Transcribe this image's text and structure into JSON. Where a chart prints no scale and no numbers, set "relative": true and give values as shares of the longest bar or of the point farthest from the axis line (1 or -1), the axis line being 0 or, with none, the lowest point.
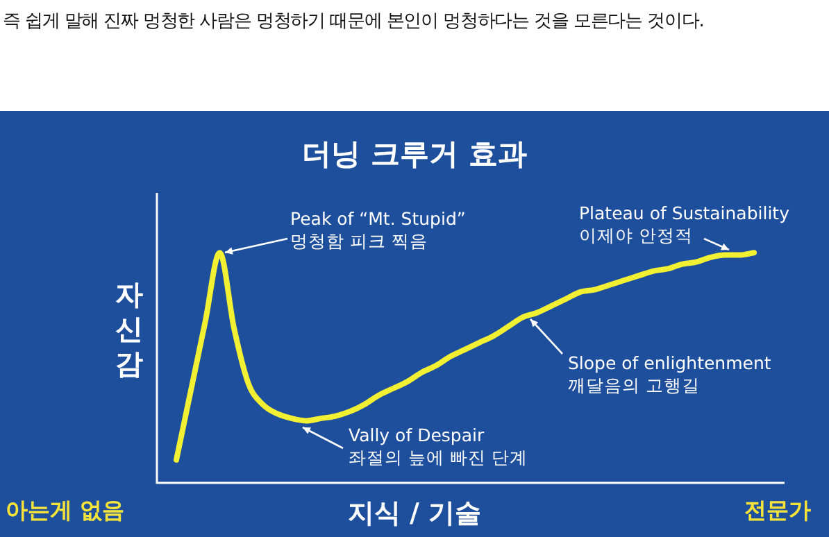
{
  "chart_data": {
    "type": "line",
    "title": "더닝 크루거 효과",
    "xlabel": "지식 / 기술",
    "ylabel": "자신감",
    "relative": true,
    "legend": false,
    "marker": "none",
    "tick_labels": false,
    "categories": [
      null,
      null,
      null,
      null,
      null,
      null,
      null,
      null,
      null,
      null,
      null,
      null,
      null,
      null,
      null,
      null,
      null,
      null,
      null,
      null,
      null,
      null,
      null,
      null,
      null,
      null,
      null,
      null,
      null,
      null,
      null,
      null,
      null,
      null,
      null,
      null,
      null,
      null,
      null,
      null,
      null
    ],
    "series": [
      {
        "color": "#f2f032",
        "values": [
          0.1,
          0.4,
          0.7,
          1.0,
          0.67,
          0.43,
          0.34,
          0.3,
          0.28,
          0.27,
          0.28,
          0.29,
          0.31,
          0.34,
          0.38,
          0.41,
          0.44,
          0.48,
          0.51,
          0.55,
          0.58,
          0.61,
          0.64,
          0.68,
          0.72,
          0.74,
          0.77,
          0.8,
          0.83,
          0.84,
          0.86,
          0.88,
          0.9,
          0.92,
          0.93,
          0.95,
          0.96,
          0.98,
          0.99,
          0.99,
          1.0
        ]
      }
    ],
    "annotations": [
      "즉 쉽게 말해 진짜 멍청한 사람은 멍청하기 때문에 본인이 멍청하다는 것을 모른다는 것이다.",
      "Peak of “Mt. Stupid”\n멍청함 피크 찍음",
      "Plateau of Sustainability\n이제야 안정적",
      "Slope of enlightenment\n깨달음의 고행길",
      "Vally of Despair\n좌절의 늪에 빠진 단계",
      "아는게 없음",
      "전문가"
    ]
  }
}
